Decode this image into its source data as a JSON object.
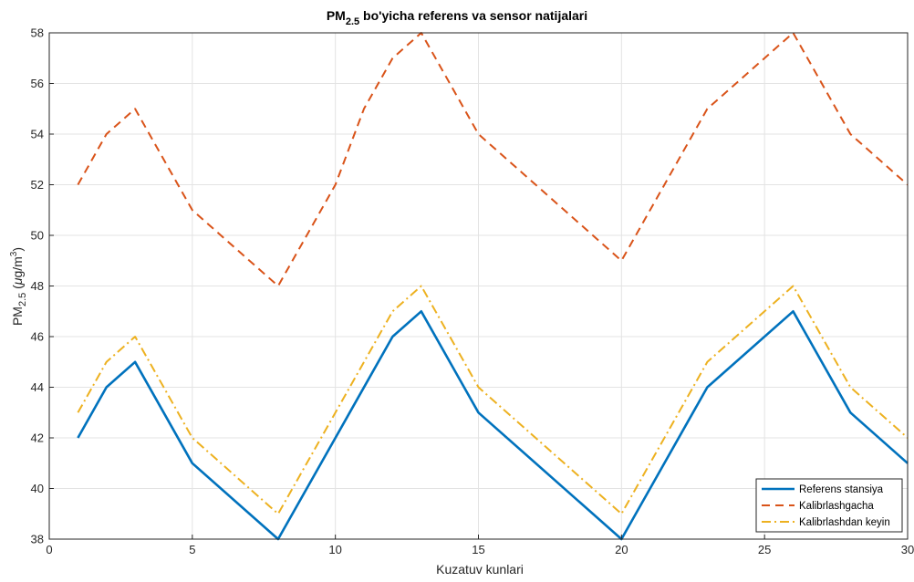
{
  "chart_data": {
    "type": "line",
    "title": {
      "main": "PM",
      "sub": "2.5",
      "rest": " bo'yicha referens va sensor natijalari"
    },
    "xlabel": "Kuzatuv kunlari",
    "ylabel": {
      "main": "PM",
      "sub": "2.5",
      "open": " (",
      "mu": "μ",
      "unit": "g/m",
      "sup": "3",
      "close": ")"
    },
    "xlim": [
      0,
      30
    ],
    "ylim": [
      38,
      58
    ],
    "xticks": [
      0,
      5,
      10,
      15,
      20,
      25,
      30
    ],
    "yticks": [
      38,
      40,
      42,
      44,
      46,
      48,
      50,
      52,
      54,
      56,
      58
    ],
    "grid": true,
    "legend_position": "bottom-right",
    "series": [
      {
        "name": "Referens stansiya",
        "color": "#0072BD",
        "style": "solid",
        "points": [
          [
            1,
            42
          ],
          [
            2,
            44
          ],
          [
            3,
            45
          ],
          [
            5,
            41
          ],
          [
            8,
            38
          ],
          [
            10,
            42
          ],
          [
            12,
            46
          ],
          [
            13,
            47
          ],
          [
            15,
            43
          ],
          [
            20,
            38
          ],
          [
            23,
            44
          ],
          [
            26,
            47
          ],
          [
            28,
            43
          ],
          [
            30,
            41
          ]
        ]
      },
      {
        "name": "Kalibrlashgacha",
        "color": "#D95319",
        "style": "dashed",
        "points": [
          [
            1,
            52
          ],
          [
            2,
            54
          ],
          [
            3,
            55
          ],
          [
            5,
            51
          ],
          [
            8,
            48
          ],
          [
            10,
            52
          ],
          [
            11,
            55
          ],
          [
            12,
            57
          ],
          [
            13,
            58
          ],
          [
            15,
            54
          ],
          [
            20,
            49
          ],
          [
            23,
            55
          ],
          [
            26,
            58
          ],
          [
            28,
            54
          ],
          [
            30,
            52
          ]
        ]
      },
      {
        "name": "Kalibrlashdan keyin",
        "color": "#EDB120",
        "style": "dashdot",
        "points": [
          [
            1,
            43
          ],
          [
            2,
            45
          ],
          [
            3,
            46
          ],
          [
            5,
            42
          ],
          [
            8,
            39
          ],
          [
            10,
            43
          ],
          [
            12,
            47
          ],
          [
            13,
            48
          ],
          [
            15,
            44
          ],
          [
            20,
            39
          ],
          [
            23,
            45
          ],
          [
            26,
            48
          ],
          [
            28,
            44
          ],
          [
            30,
            42
          ]
        ]
      }
    ]
  }
}
